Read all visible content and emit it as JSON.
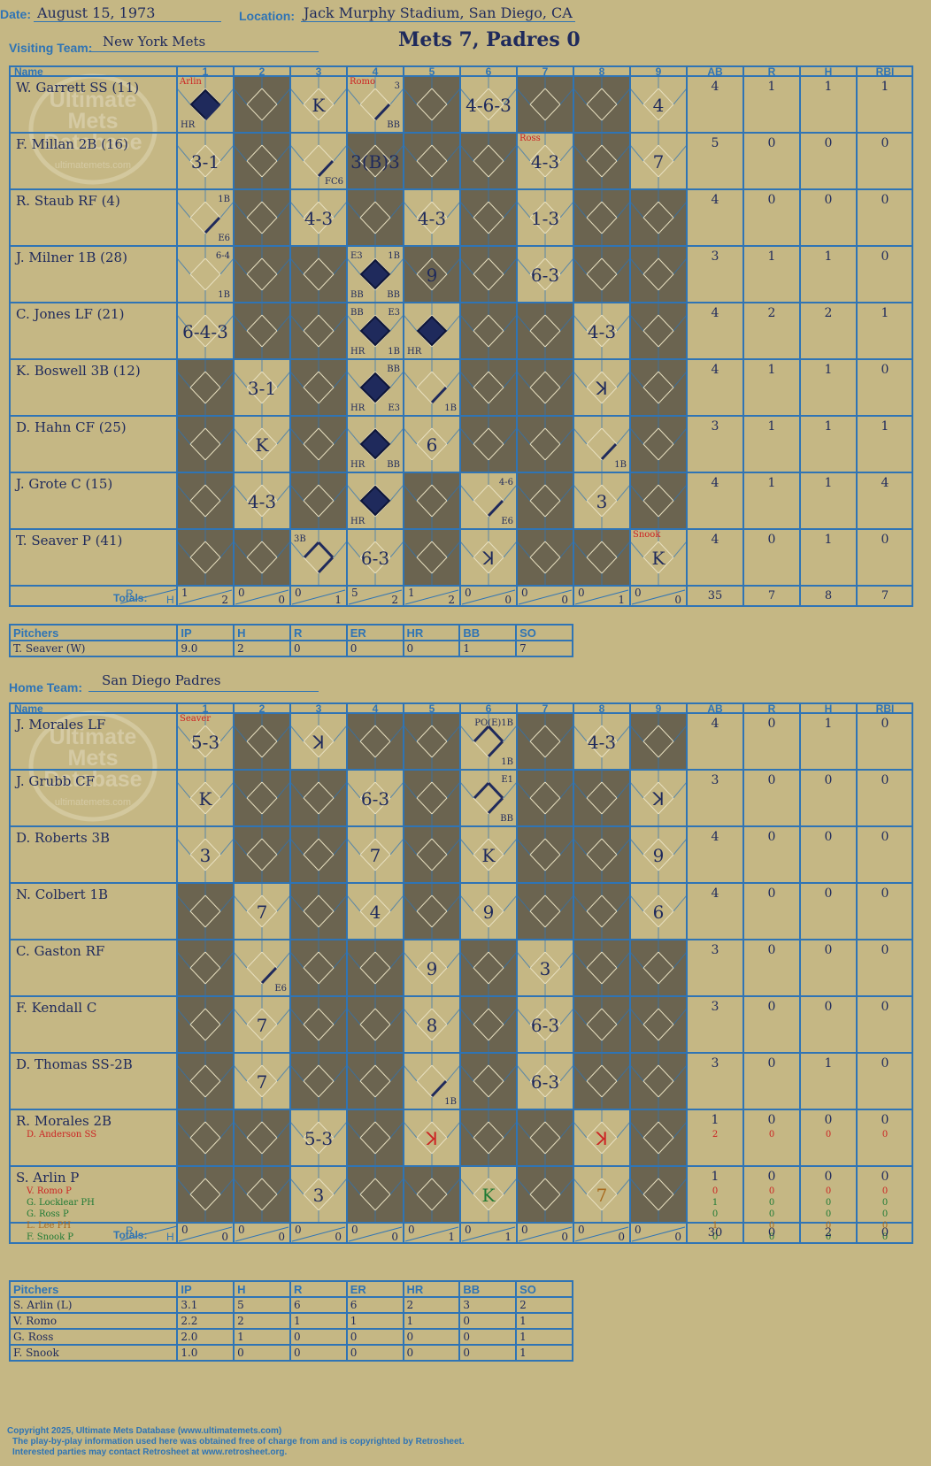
{
  "header": {
    "date_label": "Date:",
    "date": "August 15, 1973",
    "location_label": "Location:",
    "location": "Jack Murphy Stadium, San Diego, CA",
    "visiting_label": "Visiting Team:",
    "visiting_team": "New York Mets",
    "result": "Mets 7, Padres 0",
    "home_label": "Home Team:",
    "home_team": "San Diego Padres"
  },
  "watermark": {
    "line1": "Ultimate",
    "line2": "Mets",
    "line3": "Database",
    "url": "ultimatemets.com"
  },
  "colors": {
    "background": "#c5b784",
    "grid": "#2f74b5",
    "shade": "#6b6450",
    "ink": "#1f2a5c",
    "red": "#cc2222",
    "green": "#1e7a34",
    "orange": "#a86a1e"
  },
  "headers": {
    "name": "Name",
    "innings": [
      "1",
      "2",
      "3",
      "4",
      "5",
      "6",
      "7",
      "8",
      "9"
    ],
    "ab": "AB",
    "r": "R",
    "h": "H",
    "rbi": "RBI",
    "totals": "Totals:",
    "tr": "R",
    "th": "H"
  },
  "visitors": {
    "players": [
      {
        "name": "W. Garrett SS (11)",
        "ab": "4",
        "r": "1",
        "h": "1",
        "rbi": "1"
      },
      {
        "name": "F. Millan 2B (16)",
        "ab": "5",
        "r": "0",
        "h": "0",
        "rbi": "0"
      },
      {
        "name": "R. Staub RF (4)",
        "ab": "4",
        "r": "0",
        "h": "0",
        "rbi": "0"
      },
      {
        "name": "J. Milner 1B (28)",
        "ab": "3",
        "r": "1",
        "h": "1",
        "rbi": "0"
      },
      {
        "name": "C. Jones LF (21)",
        "ab": "4",
        "r": "2",
        "h": "2",
        "rbi": "1"
      },
      {
        "name": "K. Boswell 3B (12)",
        "ab": "4",
        "r": "1",
        "h": "1",
        "rbi": "0"
      },
      {
        "name": "D. Hahn CF (25)",
        "ab": "3",
        "r": "1",
        "h": "1",
        "rbi": "1"
      },
      {
        "name": "J. Grote C (15)",
        "ab": "4",
        "r": "1",
        "h": "1",
        "rbi": "4"
      },
      {
        "name": "T. Seaver P (41)",
        "ab": "4",
        "r": "0",
        "h": "1",
        "rbi": "0"
      }
    ],
    "subs": [],
    "cells": [
      {
        "r": 0,
        "c": 0,
        "run": true,
        "lines": 1,
        "bl": "HR",
        "note": "Arlin"
      },
      {
        "r": 0,
        "c": 2,
        "t": "K"
      },
      {
        "r": 0,
        "c": 3,
        "lines": 1,
        "tr": "3",
        "br": "BB",
        "note": "Romo"
      },
      {
        "r": 0,
        "c": 5,
        "t": "4-6-3"
      },
      {
        "r": 0,
        "c": 8,
        "t": "4"
      },
      {
        "r": 1,
        "c": 0,
        "t": "3-1"
      },
      {
        "r": 1,
        "c": 2,
        "lines": 1,
        "br": "FC6"
      },
      {
        "r": 1,
        "c": 3,
        "t": "3(B)3"
      },
      {
        "r": 1,
        "c": 6,
        "t": "4-3",
        "note": "Ross"
      },
      {
        "r": 1,
        "c": 8,
        "t": "7"
      },
      {
        "r": 2,
        "c": 0,
        "lines": 1,
        "tr": "1B",
        "br": "E6"
      },
      {
        "r": 2,
        "c": 2,
        "t": "4-3"
      },
      {
        "r": 2,
        "c": 4,
        "t": "4-3"
      },
      {
        "r": 2,
        "c": 6,
        "t": "1-3"
      },
      {
        "r": 3,
        "c": 0,
        "tr": "6-4",
        "br": "1B"
      },
      {
        "r": 3,
        "c": 3,
        "run": true,
        "tl": "E3",
        "tr": "1B",
        "bl": "BB",
        "br": "BB"
      },
      {
        "r": 3,
        "c": 4,
        "t": "9"
      },
      {
        "r": 3,
        "c": 6,
        "t": "6-3"
      },
      {
        "r": 4,
        "c": 0,
        "t": "6-4-3"
      },
      {
        "r": 4,
        "c": 3,
        "run": true,
        "tl": "BB",
        "tr": "E3",
        "bl": "HR",
        "br": "1B"
      },
      {
        "r": 4,
        "c": 4,
        "run": true,
        "bl": "HR"
      },
      {
        "r": 4,
        "c": 7,
        "t": "4-3"
      },
      {
        "r": 5,
        "c": 1,
        "t": "3-1"
      },
      {
        "r": 5,
        "c": 3,
        "run": true,
        "tr": "BB",
        "bl": "HR",
        "br": "E3"
      },
      {
        "r": 5,
        "c": 4,
        "lines": 1,
        "br": "1B"
      },
      {
        "r": 5,
        "c": 7,
        "t": "ꓘ"
      },
      {
        "r": 6,
        "c": 1,
        "t": "K"
      },
      {
        "r": 6,
        "c": 3,
        "run": true,
        "bl": "HR",
        "br": "BB"
      },
      {
        "r": 6,
        "c": 4,
        "t": "6"
      },
      {
        "r": 6,
        "c": 7,
        "lines": 1,
        "br": "1B"
      },
      {
        "r": 7,
        "c": 1,
        "t": "4-3"
      },
      {
        "r": 7,
        "c": 3,
        "run": true,
        "bl": "HR"
      },
      {
        "r": 7,
        "c": 5,
        "lines": 1,
        "tr": "4-6",
        "br": "E6"
      },
      {
        "r": 7,
        "c": 7,
        "t": "3"
      },
      {
        "r": 8,
        "c": 2,
        "lines": 3,
        "tl": "3B"
      },
      {
        "r": 8,
        "c": 3,
        "t": "6-3"
      },
      {
        "r": 8,
        "c": 5,
        "t": "ꓘ"
      },
      {
        "r": 8,
        "c": 8,
        "t": "K",
        "note": "Snook"
      }
    ],
    "shaded": [
      [
        1,
        4,
        6,
        7
      ],
      [
        1,
        3,
        4,
        5,
        7
      ],
      [
        1,
        3,
        5,
        7,
        8
      ],
      [
        1,
        2,
        4,
        5,
        7,
        8
      ],
      [
        1,
        2,
        5,
        6,
        8
      ],
      [
        0,
        2,
        5,
        6,
        8
      ],
      [
        0,
        2,
        5,
        6,
        8
      ],
      [
        0,
        2,
        4,
        6,
        8
      ],
      [
        0,
        1,
        4,
        6,
        7
      ]
    ],
    "totals": {
      "innings": [
        [
          "1",
          "2"
        ],
        [
          "0",
          "0"
        ],
        [
          "0",
          "1"
        ],
        [
          "5",
          "2"
        ],
        [
          "1",
          "2"
        ],
        [
          "0",
          "0"
        ],
        [
          "0",
          "0"
        ],
        [
          "0",
          "1"
        ],
        [
          "0",
          "0"
        ]
      ],
      "ab": "35",
      "r": "7",
      "h": "8",
      "rbi": "7"
    }
  },
  "home": {
    "players": [
      {
        "name": "J. Morales LF",
        "ab": "4",
        "r": "0",
        "h": "1",
        "rbi": "0"
      },
      {
        "name": "J. Grubb CF",
        "ab": "3",
        "r": "0",
        "h": "0",
        "rbi": "0"
      },
      {
        "name": "D. Roberts 3B",
        "ab": "4",
        "r": "0",
        "h": "0",
        "rbi": "0"
      },
      {
        "name": "N. Colbert 1B",
        "ab": "4",
        "r": "0",
        "h": "0",
        "rbi": "0"
      },
      {
        "name": "C. Gaston RF",
        "ab": "3",
        "r": "0",
        "h": "0",
        "rbi": "0"
      },
      {
        "name": "F. Kendall C",
        "ab": "3",
        "r": "0",
        "h": "0",
        "rbi": "0"
      },
      {
        "name": "D. Thomas SS-2B",
        "ab": "3",
        "r": "0",
        "h": "1",
        "rbi": "0"
      },
      {
        "name": "R. Morales 2B",
        "ab": "1",
        "r": "0",
        "h": "0",
        "rbi": "0"
      },
      {
        "name": "S. Arlin P",
        "ab": "1",
        "r": "0",
        "h": "0",
        "rbi": "0"
      }
    ],
    "subs": [
      {
        "row": 7,
        "name": "D. Anderson SS",
        "color": "#cc2222",
        "ab": "2",
        "r": "0",
        "h": "0",
        "rbi": "0"
      },
      {
        "row": 8,
        "name": "V. Romo P",
        "color": "#cc2222",
        "ab": "0",
        "r": "0",
        "h": "0",
        "rbi": "0"
      },
      {
        "row": 8,
        "name": "G. Locklear PH",
        "color": "#1e7a34",
        "ab": "1",
        "r": "0",
        "h": "0",
        "rbi": "0"
      },
      {
        "row": 8,
        "name": "G. Ross P",
        "color": "#1e7a34",
        "ab": "0",
        "r": "0",
        "h": "0",
        "rbi": "0"
      },
      {
        "row": 8,
        "name": "L. Lee PH",
        "color": "#a86a1e",
        "ab": "1",
        "r": "0",
        "h": "0",
        "rbi": "0"
      },
      {
        "row": 8,
        "name": "F. Snook P",
        "color": "#1e7a34",
        "ab": "0",
        "r": "0",
        "h": "0",
        "rbi": "0"
      }
    ],
    "cells": [
      {
        "r": 0,
        "c": 0,
        "t": "5-3",
        "note": "Seaver"
      },
      {
        "r": 0,
        "c": 2,
        "t": "ꓘ"
      },
      {
        "r": 0,
        "c": 5,
        "lines": 3,
        "tr": "PO(E)1B",
        "br": "1B"
      },
      {
        "r": 0,
        "c": 7,
        "t": "4-3"
      },
      {
        "r": 1,
        "c": 0,
        "t": "K"
      },
      {
        "r": 1,
        "c": 3,
        "t": "6-3"
      },
      {
        "r": 1,
        "c": 5,
        "lines": 3,
        "tr": "E1",
        "br": "BB"
      },
      {
        "r": 1,
        "c": 8,
        "t": "ꓘ"
      },
      {
        "r": 2,
        "c": 0,
        "t": "3"
      },
      {
        "r": 2,
        "c": 3,
        "t": "7"
      },
      {
        "r": 2,
        "c": 5,
        "t": "K"
      },
      {
        "r": 2,
        "c": 8,
        "t": "9"
      },
      {
        "r": 3,
        "c": 1,
        "t": "7"
      },
      {
        "r": 3,
        "c": 3,
        "t": "4"
      },
      {
        "r": 3,
        "c": 5,
        "t": "9"
      },
      {
        "r": 3,
        "c": 8,
        "t": "6"
      },
      {
        "r": 4,
        "c": 1,
        "lines": 1,
        "br": "E6"
      },
      {
        "r": 4,
        "c": 4,
        "t": "9"
      },
      {
        "r": 4,
        "c": 6,
        "t": "3"
      },
      {
        "r": 5,
        "c": 1,
        "t": "7"
      },
      {
        "r": 5,
        "c": 4,
        "t": "8"
      },
      {
        "r": 5,
        "c": 6,
        "t": "6-3"
      },
      {
        "r": 6,
        "c": 1,
        "t": "7"
      },
      {
        "r": 6,
        "c": 4,
        "lines": 1,
        "br": "1B"
      },
      {
        "r": 6,
        "c": 6,
        "t": "6-3"
      },
      {
        "r": 7,
        "c": 2,
        "t": "5-3"
      },
      {
        "r": 7,
        "c": 4,
        "t": "ꓘ",
        "color": "#cc2222"
      },
      {
        "r": 7,
        "c": 7,
        "t": "ꓘ",
        "color": "#cc2222"
      },
      {
        "r": 8,
        "c": 2,
        "t": "3"
      },
      {
        "r": 8,
        "c": 5,
        "t": "K",
        "color": "#1e7a34"
      },
      {
        "r": 8,
        "c": 7,
        "t": "7",
        "color": "#a86a1e"
      }
    ],
    "shaded": [
      [
        1,
        3,
        4,
        6,
        8
      ],
      [
        1,
        2,
        4,
        6,
        7
      ],
      [
        1,
        2,
        4,
        6,
        7
      ],
      [
        0,
        2,
        4,
        6,
        7
      ],
      [
        0,
        2,
        3,
        5,
        7,
        8
      ],
      [
        0,
        2,
        3,
        5,
        7,
        8
      ],
      [
        0,
        2,
        3,
        5,
        7,
        8
      ],
      [
        0,
        1,
        3,
        5,
        6,
        8
      ],
      [
        0,
        1,
        3,
        4,
        6,
        8
      ]
    ],
    "totals": {
      "innings": [
        [
          "0",
          "0"
        ],
        [
          "0",
          "0"
        ],
        [
          "0",
          "0"
        ],
        [
          "0",
          "0"
        ],
        [
          "0",
          "1"
        ],
        [
          "0",
          "1"
        ],
        [
          "0",
          "0"
        ],
        [
          "0",
          "0"
        ],
        [
          "0",
          "0"
        ]
      ],
      "ab": "30",
      "r": "0",
      "h": "2",
      "rbi": "0"
    }
  },
  "pitching_headers": [
    "Pitchers",
    "IP",
    "H",
    "R",
    "ER",
    "HR",
    "BB",
    "SO"
  ],
  "visiting_pitchers": [
    [
      "T. Seaver (W)",
      "9.0",
      "2",
      "0",
      "0",
      "0",
      "1",
      "7"
    ]
  ],
  "home_pitchers": [
    [
      "S. Arlin (L)",
      "3.1",
      "5",
      "6",
      "6",
      "2",
      "3",
      "2"
    ],
    [
      "V. Romo",
      "2.2",
      "2",
      "1",
      "1",
      "1",
      "0",
      "1"
    ],
    [
      "G. Ross",
      "2.0",
      "1",
      "0",
      "0",
      "0",
      "0",
      "1"
    ],
    [
      "F. Snook",
      "1.0",
      "0",
      "0",
      "0",
      "0",
      "0",
      "1"
    ]
  ],
  "footer": {
    "line1": "Copyright 2025, Ultimate Mets Database (www.ultimatemets.com)",
    "line2": "The play-by-play information used here was obtained free of charge from and is copyrighted by Retrosheet.",
    "line3": "Interested parties may contact Retrosheet at www.retrosheet.org."
  }
}
